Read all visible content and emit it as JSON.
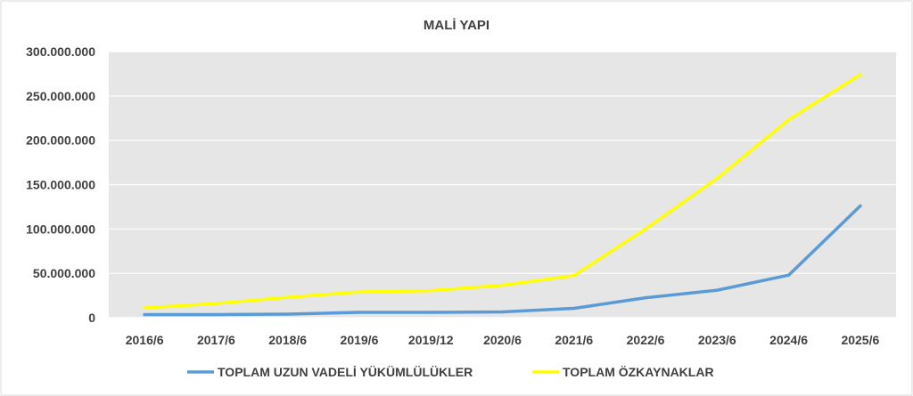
{
  "chart_data": {
    "type": "line",
    "title": "MALİ YAPI",
    "categories": [
      "2016/6",
      "2017/6",
      "2018/6",
      "2019/6",
      "2019/12",
      "2020/6",
      "2021/6",
      "2022/6",
      "2023/6",
      "2024/6",
      "2025/6"
    ],
    "y_tick_labels": [
      "0",
      "50.000.000",
      "100.000.000",
      "150.000.000",
      "200.000.000",
      "250.000.000",
      "300.000.000"
    ],
    "ylim": [
      0,
      300000000
    ],
    "grid": true,
    "legend_position": "bottom",
    "plot_background": "#e6e6e6",
    "series": [
      {
        "name": "TOPLAM UZUN VADELİ YÜKÜMLÜLÜKLER",
        "color": "#5b9bd5",
        "values": [
          3500000,
          3500000,
          4000000,
          6000000,
          6000000,
          6500000,
          10500000,
          22500000,
          31000000,
          48000000,
          126000000
        ]
      },
      {
        "name": "TOPLAM ÖZKAYNAKLAR",
        "color": "#ffff00",
        "values": [
          11000000,
          16000000,
          23000000,
          29000000,
          30500000,
          36500000,
          47500000,
          100000000,
          157000000,
          223000000,
          274000000
        ]
      }
    ]
  }
}
